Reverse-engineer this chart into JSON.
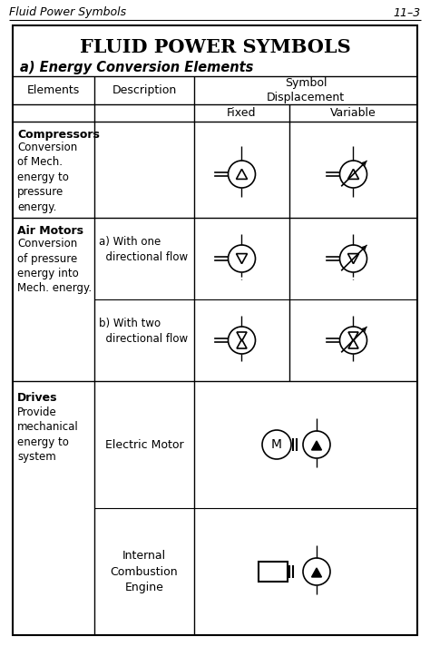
{
  "title": "FLUID POWER SYMBOLS",
  "subtitle": "a) Energy Conversion Elements",
  "header_left": "Fluid Power Symbols",
  "header_right": "11–3",
  "background": "#ffffff",
  "line_color": "#000000",
  "text_color": "#000000",
  "figsize": [
    4.74,
    7.23
  ],
  "dpi": 100
}
